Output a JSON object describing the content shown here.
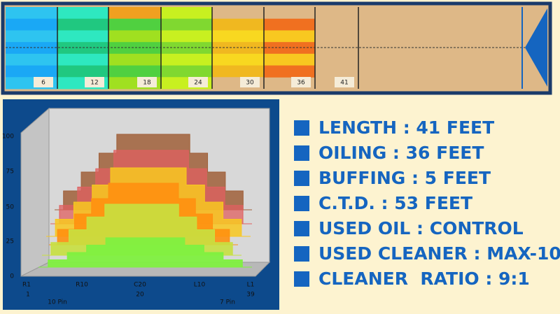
{
  "lane": {
    "markers": [
      6,
      12,
      18,
      24,
      30,
      36,
      41
    ]
  },
  "chart": {
    "yticks": [
      100,
      75,
      50,
      25,
      0
    ],
    "boards": [
      "R1",
      "R10",
      "C20",
      "L10",
      "L1"
    ],
    "board_numbers": [
      1,
      20,
      39
    ],
    "pins": [
      "10 Pin",
      "7 Pin"
    ]
  },
  "specs": [
    "LENGTH : 41 FEET",
    "OILING : 36 FEET",
    "BUFFING : 5 FEET",
    "C.T.D. : 53 FEET",
    "USED OIL : CONTROL",
    "USED CLEANER : MAX-10",
    "CLEANER  RATIO : 9:1"
  ]
}
